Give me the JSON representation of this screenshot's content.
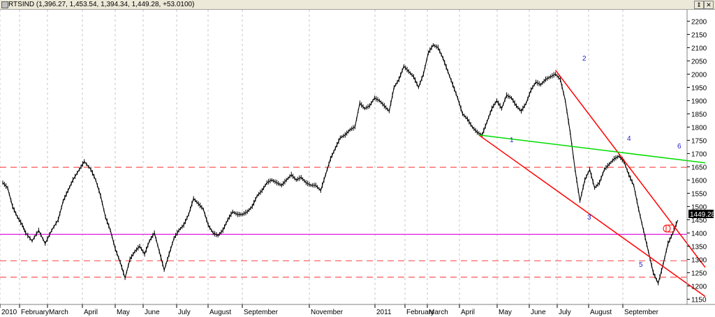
{
  "window": {
    "title": "RTSIND (1,396.27, 1,453.54, 1,394.34, 1,449.28, +53.0100)",
    "buttons": {
      "restore": "⇕",
      "close": "✕"
    }
  },
  "chart_data": {
    "type": "line",
    "title": "RTSIND (1,396.27, 1,453.54, 1,394.34, 1,449.28, +53.0100)",
    "xlabel": "",
    "ylabel": "",
    "ylim": [
      1130,
      2230
    ],
    "y_ticks": [
      1150,
      1200,
      1250,
      1300,
      1350,
      1400,
      1450,
      1500,
      1550,
      1600,
      1650,
      1700,
      1750,
      1800,
      1850,
      1900,
      1950,
      2000,
      2050,
      2100,
      2150,
      2200
    ],
    "x_tick_labels": [
      "2010",
      "February",
      "March",
      "April",
      "May",
      "June",
      "July",
      "August",
      "September",
      "November",
      "2011",
      "February",
      "March",
      "April",
      "May",
      "June",
      "July",
      "August",
      "September"
    ],
    "last_price_label": "1449.28",
    "series": [
      {
        "values": [
          [
            0,
            1590
          ],
          [
            3,
            1570
          ],
          [
            6,
            1500
          ],
          [
            9,
            1460
          ],
          [
            12,
            1430
          ],
          [
            14,
            1400
          ],
          [
            18,
            1370
          ],
          [
            22,
            1410
          ],
          [
            26,
            1360
          ],
          [
            30,
            1410
          ],
          [
            34,
            1450
          ],
          [
            37,
            1520
          ],
          [
            40,
            1560
          ],
          [
            43,
            1600
          ],
          [
            47,
            1640
          ],
          [
            50,
            1670
          ],
          [
            54,
            1640
          ],
          [
            57,
            1600
          ],
          [
            60,
            1540
          ],
          [
            63,
            1460
          ],
          [
            66,
            1410
          ],
          [
            69,
            1340
          ],
          [
            72,
            1290
          ],
          [
            75,
            1230
          ],
          [
            78,
            1300
          ],
          [
            81,
            1330
          ],
          [
            84,
            1350
          ],
          [
            87,
            1320
          ],
          [
            90,
            1370
          ],
          [
            93,
            1400
          ],
          [
            96,
            1330
          ],
          [
            99,
            1260
          ],
          [
            102,
            1320
          ],
          [
            105,
            1380
          ],
          [
            108,
            1410
          ],
          [
            111,
            1430
          ],
          [
            114,
            1470
          ],
          [
            117,
            1530
          ],
          [
            120,
            1510
          ],
          [
            123,
            1490
          ],
          [
            126,
            1430
          ],
          [
            129,
            1400
          ],
          [
            132,
            1390
          ],
          [
            135,
            1410
          ],
          [
            138,
            1450
          ],
          [
            141,
            1480
          ],
          [
            144,
            1470
          ],
          [
            147,
            1470
          ],
          [
            150,
            1480
          ],
          [
            153,
            1500
          ],
          [
            156,
            1540
          ],
          [
            159,
            1560
          ],
          [
            162,
            1590
          ],
          [
            165,
            1600
          ],
          [
            168,
            1590
          ],
          [
            171,
            1580
          ],
          [
            174,
            1600
          ],
          [
            177,
            1620
          ],
          [
            180,
            1600
          ],
          [
            183,
            1610
          ],
          [
            186,
            1590
          ],
          [
            189,
            1580
          ],
          [
            192,
            1580
          ],
          [
            195,
            1560
          ],
          [
            198,
            1620
          ],
          [
            201,
            1680
          ],
          [
            204,
            1720
          ],
          [
            207,
            1760
          ],
          [
            210,
            1770
          ],
          [
            213,
            1790
          ],
          [
            216,
            1800
          ],
          [
            219,
            1890
          ],
          [
            222,
            1870
          ],
          [
            225,
            1880
          ],
          [
            228,
            1910
          ],
          [
            231,
            1900
          ],
          [
            234,
            1880
          ],
          [
            237,
            1860
          ],
          [
            240,
            1950
          ],
          [
            243,
            1980
          ],
          [
            246,
            2030
          ],
          [
            249,
            2010
          ],
          [
            252,
            1990
          ],
          [
            255,
            1950
          ],
          [
            258,
            2000
          ],
          [
            261,
            2080
          ],
          [
            264,
            2110
          ],
          [
            267,
            2100
          ],
          [
            270,
            2060
          ],
          [
            273,
            2010
          ],
          [
            276,
            1960
          ],
          [
            279,
            1910
          ],
          [
            282,
            1850
          ],
          [
            285,
            1830
          ],
          [
            288,
            1800
          ],
          [
            291,
            1780
          ],
          [
            294,
            1770
          ],
          [
            297,
            1820
          ],
          [
            300,
            1870
          ],
          [
            303,
            1900
          ],
          [
            306,
            1870
          ],
          [
            309,
            1920
          ],
          [
            312,
            1910
          ],
          [
            315,
            1880
          ],
          [
            318,
            1860
          ],
          [
            321,
            1890
          ],
          [
            324,
            1940
          ],
          [
            327,
            1970
          ],
          [
            330,
            1960
          ],
          [
            333,
            1980
          ],
          [
            336,
            1990
          ],
          [
            339,
            2000
          ],
          [
            342,
            1980
          ],
          [
            345,
            1900
          ],
          [
            348,
            1780
          ],
          [
            351,
            1640
          ],
          [
            354,
            1520
          ],
          [
            357,
            1600
          ],
          [
            360,
            1640
          ],
          [
            363,
            1570
          ],
          [
            366,
            1590
          ],
          [
            369,
            1640
          ],
          [
            372,
            1660
          ],
          [
            375,
            1680
          ],
          [
            378,
            1690
          ],
          [
            381,
            1670
          ],
          [
            384,
            1620
          ],
          [
            387,
            1580
          ],
          [
            390,
            1490
          ],
          [
            393,
            1410
          ],
          [
            396,
            1330
          ],
          [
            399,
            1250
          ],
          [
            402,
            1210
          ],
          [
            405,
            1280
          ],
          [
            408,
            1360
          ],
          [
            411,
            1400
          ],
          [
            414,
            1449
          ]
        ]
      }
    ],
    "trend_lines": [
      {
        "color": "#ff0000",
        "points": [
          [
            292,
            1770
          ],
          [
            418,
            1160
          ]
        ]
      },
      {
        "color": "#ff0000",
        "points": [
          [
            339,
            2015
          ],
          [
            418,
            1270
          ]
        ]
      },
      {
        "color": "#00dd00",
        "points": [
          [
            292,
            1770
          ],
          [
            418,
            1665
          ]
        ]
      }
    ],
    "horizontal_lines": [
      {
        "y": 1648,
        "color": "#ff5555",
        "style": "dashed"
      },
      {
        "y": 1395,
        "color": "#dd00dd",
        "style": "solid"
      },
      {
        "y": 1295,
        "color": "#ff5555",
        "style": "dashed"
      },
      {
        "y": 1233,
        "color": "#ff5555",
        "style": "dashed"
      }
    ],
    "wave_labels": [
      "1",
      "2",
      "3",
      "4",
      "5",
      "6"
    ],
    "colors": {
      "price": "#000000",
      "grid": "#aaaaaa",
      "label_bg": "#000000",
      "label_fg": "#ffffff"
    }
  }
}
